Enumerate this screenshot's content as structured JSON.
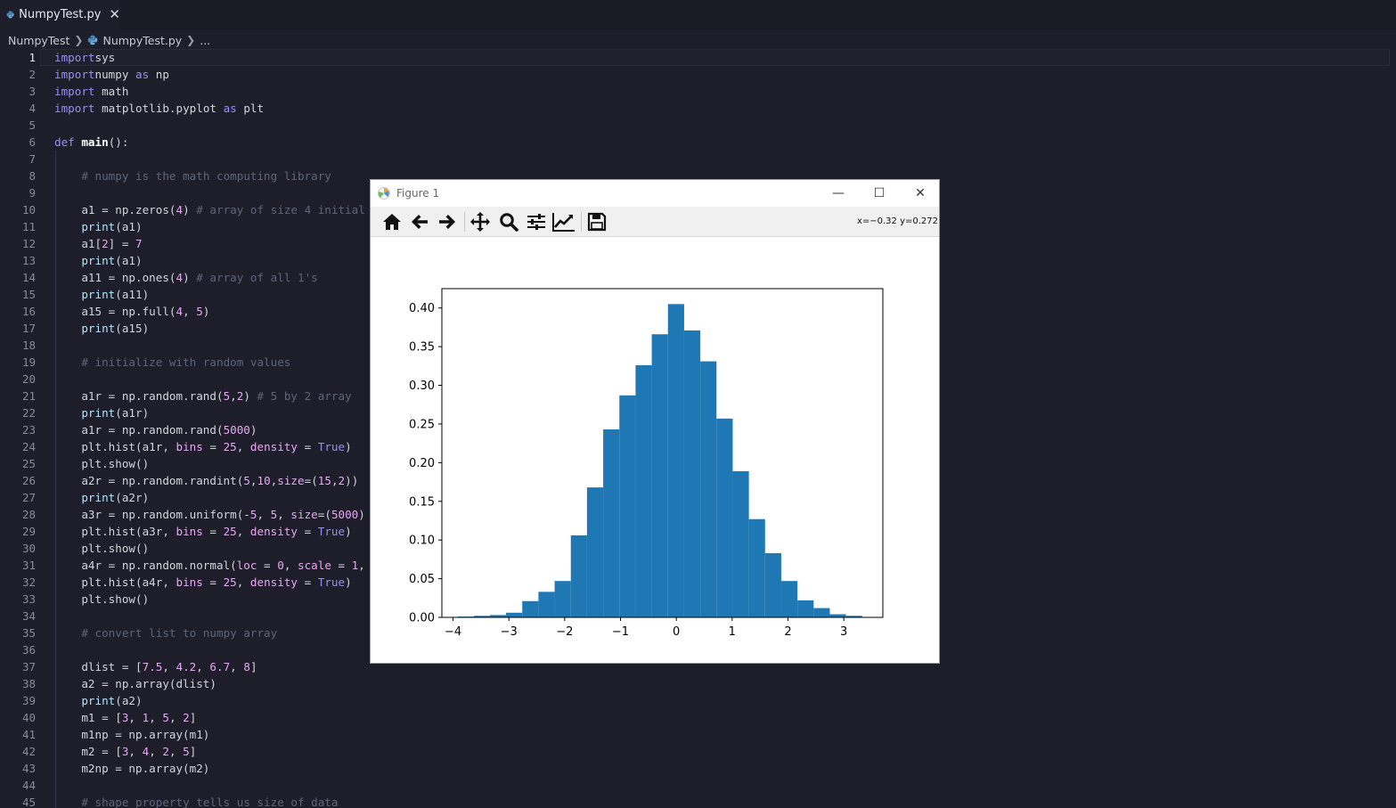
{
  "tab": {
    "filename": "NumpyTest.py",
    "close_glyph": "✕"
  },
  "breadcrumb": {
    "folder": "NumpyTest",
    "file": "NumpyTest.py",
    "more": "..."
  },
  "editor": {
    "line_numbers": [
      "1",
      "2",
      "3",
      "4",
      "5",
      "6",
      "7",
      "8",
      "9",
      "10",
      "11",
      "12",
      "13",
      "14",
      "15",
      "16",
      "17",
      "18",
      "19",
      "20",
      "21",
      "22",
      "23",
      "24",
      "25",
      "26",
      "27",
      "28",
      "29",
      "30",
      "31",
      "32",
      "33",
      "34",
      "35",
      "36",
      "37",
      "38",
      "39",
      "40",
      "41",
      "42",
      "43",
      "44",
      "45"
    ],
    "lines": [
      [
        [
          "kw",
          "import"
        ],
        [
          "",
          "sys"
        ]
      ],
      [
        [
          "kw",
          "import"
        ],
        [
          "",
          "numpy "
        ],
        [
          "kw",
          "as"
        ],
        [
          "",
          " np"
        ]
      ],
      [
        [
          "kw",
          "import"
        ],
        [
          "",
          " math"
        ]
      ],
      [
        [
          "kw",
          "import"
        ],
        [
          "",
          " matplotlib.pyplot "
        ],
        [
          "kw",
          "as"
        ],
        [
          "",
          " plt"
        ]
      ],
      [],
      [
        [
          "kw",
          "def"
        ],
        [
          "",
          " "
        ],
        [
          "fn",
          "main"
        ],
        [
          "",
          "():"
        ]
      ],
      [],
      [
        [
          "",
          "    "
        ],
        [
          "cm",
          "# numpy is the math computing library"
        ]
      ],
      [],
      [
        [
          "",
          "    a1 = np.zeros("
        ],
        [
          "num",
          "4"
        ],
        [
          "",
          ") "
        ],
        [
          "cm",
          "# array of size 4 initial"
        ]
      ],
      [
        [
          "",
          "    "
        ],
        [
          "bi",
          "print"
        ],
        [
          "",
          "(a1)"
        ]
      ],
      [
        [
          "",
          "    a1["
        ],
        [
          "num",
          "2"
        ],
        [
          "",
          "] = "
        ],
        [
          "num",
          "7"
        ]
      ],
      [
        [
          "",
          "    "
        ],
        [
          "bi",
          "print"
        ],
        [
          "",
          "(a1)"
        ]
      ],
      [
        [
          "",
          "    a11 = np.ones("
        ],
        [
          "num",
          "4"
        ],
        [
          "",
          ") "
        ],
        [
          "cm",
          "# array of all 1's"
        ]
      ],
      [
        [
          "",
          "    "
        ],
        [
          "bi",
          "print"
        ],
        [
          "",
          "(a11)"
        ]
      ],
      [
        [
          "",
          "    a15 = np.full("
        ],
        [
          "num",
          "4"
        ],
        [
          "",
          ", "
        ],
        [
          "num",
          "5"
        ],
        [
          "",
          ")"
        ]
      ],
      [
        [
          "",
          "    "
        ],
        [
          "bi",
          "print"
        ],
        [
          "",
          "(a15)"
        ]
      ],
      [],
      [
        [
          "",
          "    "
        ],
        [
          "cm",
          "# initialize with random values"
        ]
      ],
      [],
      [
        [
          "",
          "    a1r = np.random.rand("
        ],
        [
          "num",
          "5"
        ],
        [
          "",
          ","
        ],
        [
          "num",
          "2"
        ],
        [
          "",
          ") "
        ],
        [
          "cm",
          "# 5 by 2 array"
        ]
      ],
      [
        [
          "",
          "    "
        ],
        [
          "bi",
          "print"
        ],
        [
          "",
          "(a1r)"
        ]
      ],
      [
        [
          "",
          "    a1r = np.random.rand("
        ],
        [
          "num",
          "5000"
        ],
        [
          "",
          ")"
        ]
      ],
      [
        [
          "",
          "    plt.hist(a1r, "
        ],
        [
          "param",
          "bins"
        ],
        [
          "",
          " = "
        ],
        [
          "num",
          "25"
        ],
        [
          "",
          ", "
        ],
        [
          "param",
          "density"
        ],
        [
          "",
          " = "
        ],
        [
          "kw",
          "True"
        ],
        [
          "",
          ")"
        ]
      ],
      [
        [
          "",
          "    plt.show()"
        ]
      ],
      [
        [
          "",
          "    a2r = np.random.randint("
        ],
        [
          "num",
          "5"
        ],
        [
          "",
          ","
        ],
        [
          "num",
          "10"
        ],
        [
          "",
          ","
        ],
        [
          "param",
          "size"
        ],
        [
          "",
          "=("
        ],
        [
          "num",
          "15"
        ],
        [
          "",
          ","
        ],
        [
          "num",
          "2"
        ],
        [
          "",
          "))"
        ]
      ],
      [
        [
          "",
          "    "
        ],
        [
          "bi",
          "print"
        ],
        [
          "",
          "(a2r)"
        ]
      ],
      [
        [
          "",
          "    a3r = np.random.uniform(-"
        ],
        [
          "num",
          "5"
        ],
        [
          "",
          ", "
        ],
        [
          "num",
          "5"
        ],
        [
          "",
          ", "
        ],
        [
          "param",
          "size"
        ],
        [
          "",
          "=("
        ],
        [
          "num",
          "5000"
        ],
        [
          "",
          ")"
        ]
      ],
      [
        [
          "",
          "    plt.hist(a3r, "
        ],
        [
          "param",
          "bins"
        ],
        [
          "",
          " = "
        ],
        [
          "num",
          "25"
        ],
        [
          "",
          ", "
        ],
        [
          "param",
          "density"
        ],
        [
          "",
          " = "
        ],
        [
          "kw",
          "True"
        ],
        [
          "",
          ")"
        ]
      ],
      [
        [
          "",
          "    plt.show()"
        ]
      ],
      [
        [
          "",
          "    a4r = np.random.normal("
        ],
        [
          "param",
          "loc"
        ],
        [
          "",
          " = "
        ],
        [
          "num",
          "0"
        ],
        [
          "",
          ", "
        ],
        [
          "param",
          "scale"
        ],
        [
          "",
          " = "
        ],
        [
          "num",
          "1"
        ],
        [
          "",
          ","
        ]
      ],
      [
        [
          "",
          "    plt.hist(a4r, "
        ],
        [
          "param",
          "bins"
        ],
        [
          "",
          " = "
        ],
        [
          "num",
          "25"
        ],
        [
          "",
          ", "
        ],
        [
          "param",
          "density"
        ],
        [
          "",
          " = "
        ],
        [
          "kw",
          "True"
        ],
        [
          "",
          ")"
        ]
      ],
      [
        [
          "",
          "    plt.show()"
        ]
      ],
      [],
      [
        [
          "",
          "    "
        ],
        [
          "cm",
          "# convert list to numpy array"
        ]
      ],
      [],
      [
        [
          "",
          "    dlist = ["
        ],
        [
          "num",
          "7.5"
        ],
        [
          "",
          ", "
        ],
        [
          "num",
          "4.2"
        ],
        [
          "",
          ", "
        ],
        [
          "num",
          "6.7"
        ],
        [
          "",
          ", "
        ],
        [
          "num",
          "8"
        ],
        [
          "",
          "]"
        ]
      ],
      [
        [
          "",
          "    a2 = np.array(dlist)"
        ]
      ],
      [
        [
          "",
          "    "
        ],
        [
          "bi",
          "print"
        ],
        [
          "",
          "(a2)"
        ]
      ],
      [
        [
          "",
          "    m1 = ["
        ],
        [
          "num",
          "3"
        ],
        [
          "",
          ", "
        ],
        [
          "num",
          "1"
        ],
        [
          "",
          ", "
        ],
        [
          "num",
          "5"
        ],
        [
          "",
          ", "
        ],
        [
          "num",
          "2"
        ],
        [
          "",
          "]"
        ]
      ],
      [
        [
          "",
          "    m1np = np.array(m1)"
        ]
      ],
      [
        [
          "",
          "    m2 = ["
        ],
        [
          "num",
          "3"
        ],
        [
          "",
          ", "
        ],
        [
          "num",
          "4"
        ],
        [
          "",
          ", "
        ],
        [
          "num",
          "2"
        ],
        [
          "",
          ", "
        ],
        [
          "num",
          "5"
        ],
        [
          "",
          "]"
        ]
      ],
      [
        [
          "",
          "    m2np = np.array(m2)"
        ]
      ],
      [],
      [
        [
          "",
          "    "
        ],
        [
          "cm",
          "# shape property tells us size of data"
        ]
      ]
    ]
  },
  "figure_window": {
    "title": "Figure 1",
    "minimize_glyph": "—",
    "maximize_glyph": "☐",
    "close_glyph": "✕",
    "toolbar_icons": [
      "home-icon",
      "back-arrow-icon",
      "forward-arrow-icon",
      "pan-icon",
      "zoom-icon",
      "configure-subplots-icon",
      "edit-axis-icon",
      "save-icon"
    ],
    "coords": "x=−0.32 y=0.272"
  },
  "chart_data": {
    "type": "bar",
    "bar_color": "#1f77b4",
    "bin_edges": [
      -3.92,
      -3.63,
      -3.34,
      -3.05,
      -2.76,
      -2.47,
      -2.18,
      -1.89,
      -1.6,
      -1.31,
      -1.02,
      -0.73,
      -0.44,
      -0.15,
      0.14,
      0.43,
      0.72,
      1.01,
      1.3,
      1.59,
      1.88,
      2.17,
      2.46,
      2.75,
      3.04,
      3.33
    ],
    "values": [
      0.001,
      0.002,
      0.003,
      0.006,
      0.021,
      0.033,
      0.047,
      0.106,
      0.168,
      0.243,
      0.287,
      0.326,
      0.366,
      0.405,
      0.371,
      0.331,
      0.257,
      0.189,
      0.127,
      0.083,
      0.047,
      0.022,
      0.012,
      0.004,
      0.002
    ],
    "xlim": [
      -4.2,
      3.7
    ],
    "ylim": [
      0,
      0.425
    ],
    "xticks": [
      -4,
      -3,
      -2,
      -1,
      0,
      1,
      2,
      3
    ],
    "xtick_labels": [
      "−4",
      "−3",
      "−2",
      "−1",
      "0",
      "1",
      "2",
      "3"
    ],
    "yticks": [
      0,
      0.05,
      0.1,
      0.15,
      0.2,
      0.25,
      0.3,
      0.35,
      0.4
    ],
    "ytick_labels": [
      "0.00",
      "0.05",
      "0.10",
      "0.15",
      "0.20",
      "0.25",
      "0.30",
      "0.35",
      "0.40"
    ],
    "title": "",
    "xlabel": "",
    "ylabel": "",
    "grid": false
  }
}
